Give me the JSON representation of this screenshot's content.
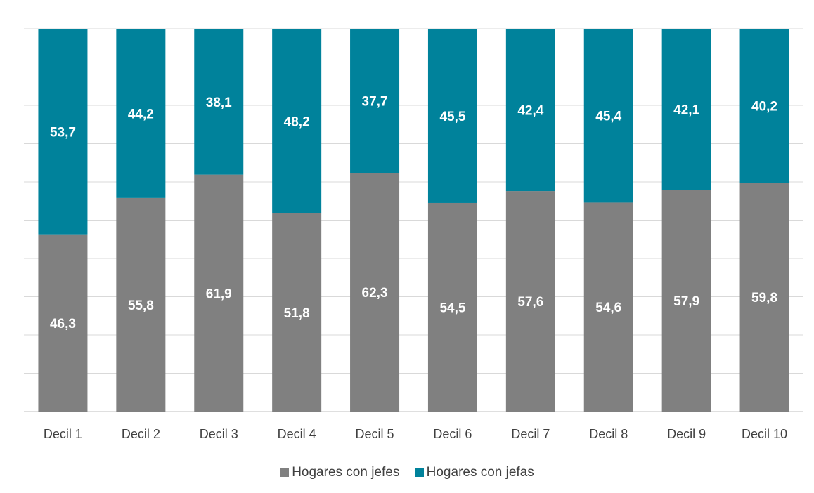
{
  "chart_data": {
    "type": "bar",
    "stacked": true,
    "title": "",
    "categories": [
      "Decil 1",
      "Decil 2",
      "Decil 3",
      "Decil 4",
      "Decil 5",
      "Decil 6",
      "Decil 7",
      "Decil 8",
      "Decil 9",
      "Decil 10"
    ],
    "series": [
      {
        "name": "Hogares con jefes",
        "color": "#808080",
        "values": [
          46.3,
          55.8,
          61.9,
          51.8,
          62.3,
          54.5,
          57.6,
          54.6,
          57.9,
          59.8
        ]
      },
      {
        "name": "Hogares con jefas",
        "color": "#00829b",
        "values": [
          53.7,
          44.2,
          38.1,
          48.2,
          37.7,
          45.5,
          42.4,
          45.4,
          42.1,
          40.2
        ]
      }
    ],
    "value_labels": {
      "jefes": [
        "46,3",
        "55,8",
        "61,9",
        "51,8",
        "62,3",
        "54,5",
        "57,6",
        "54,6",
        "57,9",
        "59,8"
      ],
      "jefas": [
        "53,7",
        "44,2",
        "38,1",
        "48,2",
        "37,7",
        "45,5",
        "42,4",
        "45,4",
        "42,1",
        "40,2"
      ]
    },
    "ylim": [
      0,
      100
    ],
    "grid": true,
    "legend_position": "bottom"
  }
}
